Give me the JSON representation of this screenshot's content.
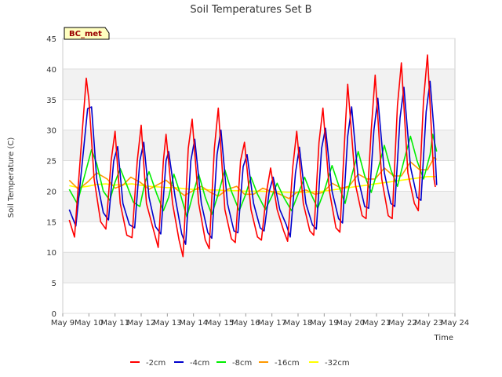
{
  "chart_data": {
    "type": "line",
    "title": "Soil Temperatures Set B",
    "xlabel": "Time",
    "ylabel": "Soil Temperature (C)",
    "annotation": "BC_met",
    "ylim": [
      0,
      45
    ],
    "yticks": [
      0,
      5,
      10,
      15,
      20,
      25,
      30,
      35,
      40,
      45
    ],
    "xlim": [
      9,
      24
    ],
    "xticks": [
      {
        "x": 9,
        "label": "May 9"
      },
      {
        "x": 10,
        "label": "May 10"
      },
      {
        "x": 11,
        "label": "May 11"
      },
      {
        "x": 12,
        "label": "May 12"
      },
      {
        "x": 13,
        "label": "May 13"
      },
      {
        "x": 14,
        "label": "May 14"
      },
      {
        "x": 15,
        "label": "May 15"
      },
      {
        "x": 16,
        "label": "May 16"
      },
      {
        "x": 17,
        "label": "May 17"
      },
      {
        "x": 18,
        "label": "May 18"
      },
      {
        "x": 19,
        "label": "May 19"
      },
      {
        "x": 20,
        "label": "May 20"
      },
      {
        "x": 21,
        "label": "May 21"
      },
      {
        "x": 22,
        "label": "May 22"
      },
      {
        "x": 23,
        "label": "May 23"
      },
      {
        "x": 24,
        "label": "May 24"
      }
    ],
    "grid": true,
    "legend_position": "bottom",
    "series": [
      {
        "name": "-2cm",
        "color": "#ff0000",
        "points": [
          [
            9.25,
            15.3
          ],
          [
            9.45,
            12.5
          ],
          [
            9.75,
            30
          ],
          [
            9.9,
            38.5
          ],
          [
            10.0,
            35
          ],
          [
            10.2,
            22
          ],
          [
            10.45,
            15
          ],
          [
            10.65,
            13.8
          ],
          [
            10.85,
            25
          ],
          [
            11.0,
            29.8
          ],
          [
            11.2,
            18
          ],
          [
            11.45,
            12.8
          ],
          [
            11.65,
            12.4
          ],
          [
            11.85,
            25
          ],
          [
            12.0,
            30.8
          ],
          [
            12.2,
            18
          ],
          [
            12.45,
            14
          ],
          [
            12.65,
            10.8
          ],
          [
            12.85,
            25
          ],
          [
            12.95,
            29.3
          ],
          [
            13.2,
            18
          ],
          [
            13.45,
            12
          ],
          [
            13.6,
            9.3
          ],
          [
            13.8,
            27
          ],
          [
            13.95,
            31.8
          ],
          [
            14.2,
            18
          ],
          [
            14.45,
            12
          ],
          [
            14.6,
            10.6
          ],
          [
            14.8,
            27
          ],
          [
            14.95,
            33.6
          ],
          [
            15.2,
            17
          ],
          [
            15.45,
            12.2
          ],
          [
            15.6,
            11.6
          ],
          [
            15.8,
            25
          ],
          [
            15.95,
            28
          ],
          [
            16.2,
            17
          ],
          [
            16.45,
            12.5
          ],
          [
            16.6,
            12
          ],
          [
            16.8,
            20
          ],
          [
            16.95,
            23.8
          ],
          [
            17.2,
            17
          ],
          [
            17.45,
            13.5
          ],
          [
            17.6,
            11.8
          ],
          [
            17.8,
            24
          ],
          [
            17.95,
            29.8
          ],
          [
            18.2,
            18
          ],
          [
            18.45,
            13.5
          ],
          [
            18.6,
            12.8
          ],
          [
            18.8,
            28
          ],
          [
            18.95,
            33.6
          ],
          [
            19.2,
            20
          ],
          [
            19.45,
            14
          ],
          [
            19.6,
            13.3
          ],
          [
            19.8,
            30
          ],
          [
            19.9,
            37.5
          ],
          [
            20.2,
            21
          ],
          [
            20.45,
            16
          ],
          [
            20.6,
            15.5
          ],
          [
            20.8,
            30
          ],
          [
            20.95,
            39
          ],
          [
            21.2,
            22
          ],
          [
            21.45,
            16
          ],
          [
            21.6,
            15.5
          ],
          [
            21.8,
            34
          ],
          [
            21.95,
            41
          ],
          [
            22.2,
            23
          ],
          [
            22.45,
            18
          ],
          [
            22.6,
            16.8
          ],
          [
            22.8,
            35
          ],
          [
            22.95,
            42.3
          ],
          [
            23.1,
            30
          ],
          [
            23.2,
            22
          ],
          [
            23.25,
            20.7
          ]
        ]
      },
      {
        "name": "-4cm",
        "color": "#0000cc",
        "points": [
          [
            9.25,
            17
          ],
          [
            9.5,
            14.3
          ],
          [
            9.8,
            27
          ],
          [
            9.95,
            33.5
          ],
          [
            10.1,
            33.8
          ],
          [
            10.3,
            22
          ],
          [
            10.55,
            16.5
          ],
          [
            10.75,
            15.3
          ],
          [
            10.95,
            25
          ],
          [
            11.1,
            27.3
          ],
          [
            11.3,
            18
          ],
          [
            11.55,
            14.5
          ],
          [
            11.75,
            14
          ],
          [
            11.95,
            25
          ],
          [
            12.1,
            28
          ],
          [
            12.3,
            19
          ],
          [
            12.55,
            14.2
          ],
          [
            12.75,
            13
          ],
          [
            12.95,
            25
          ],
          [
            13.05,
            26.5
          ],
          [
            13.3,
            19
          ],
          [
            13.55,
            13
          ],
          [
            13.7,
            11.3
          ],
          [
            13.9,
            25
          ],
          [
            14.05,
            28.5
          ],
          [
            14.3,
            18
          ],
          [
            14.55,
            13.2
          ],
          [
            14.7,
            12.3
          ],
          [
            14.9,
            26
          ],
          [
            15.05,
            30
          ],
          [
            15.3,
            18
          ],
          [
            15.55,
            13.5
          ],
          [
            15.7,
            13.2
          ],
          [
            15.9,
            24
          ],
          [
            16.05,
            26
          ],
          [
            16.3,
            18
          ],
          [
            16.55,
            14
          ],
          [
            16.7,
            13.5
          ],
          [
            16.9,
            20
          ],
          [
            17.05,
            22.3
          ],
          [
            17.3,
            17
          ],
          [
            17.55,
            14.5
          ],
          [
            17.7,
            12.5
          ],
          [
            17.9,
            23
          ],
          [
            18.05,
            27.2
          ],
          [
            18.3,
            18
          ],
          [
            18.55,
            14.5
          ],
          [
            18.7,
            13.8
          ],
          [
            18.9,
            27
          ],
          [
            19.05,
            30.3
          ],
          [
            19.3,
            20
          ],
          [
            19.55,
            15.5
          ],
          [
            19.7,
            14.8
          ],
          [
            19.9,
            29
          ],
          [
            20.05,
            33.8
          ],
          [
            20.3,
            22
          ],
          [
            20.55,
            17.5
          ],
          [
            20.7,
            17.2
          ],
          [
            20.9,
            30
          ],
          [
            21.05,
            35.2
          ],
          [
            21.3,
            23
          ],
          [
            21.55,
            18
          ],
          [
            21.7,
            17.5
          ],
          [
            21.9,
            32
          ],
          [
            22.05,
            37
          ],
          [
            22.3,
            24
          ],
          [
            22.55,
            19
          ],
          [
            22.7,
            18.5
          ],
          [
            22.9,
            33
          ],
          [
            23.05,
            38
          ],
          [
            23.2,
            30
          ],
          [
            23.3,
            21
          ]
        ]
      },
      {
        "name": "-8cm",
        "color": "#00ee00",
        "points": [
          [
            9.25,
            20.3
          ],
          [
            9.55,
            18
          ],
          [
            9.8,
            22
          ],
          [
            10.1,
            26.8
          ],
          [
            10.3,
            24.5
          ],
          [
            10.55,
            20
          ],
          [
            10.8,
            18.5
          ],
          [
            11.0,
            21.5
          ],
          [
            11.2,
            23.7
          ],
          [
            11.45,
            21
          ],
          [
            11.7,
            18.2
          ],
          [
            11.95,
            17.5
          ],
          [
            12.15,
            21.5
          ],
          [
            12.3,
            23.2
          ],
          [
            12.6,
            19.5
          ],
          [
            12.85,
            16.8
          ],
          [
            13.05,
            19
          ],
          [
            13.25,
            22.8
          ],
          [
            13.5,
            19.5
          ],
          [
            13.75,
            15.8
          ],
          [
            13.95,
            19
          ],
          [
            14.2,
            22.8
          ],
          [
            14.45,
            19
          ],
          [
            14.7,
            16.2
          ],
          [
            14.95,
            19.5
          ],
          [
            15.2,
            23.5
          ],
          [
            15.45,
            20
          ],
          [
            15.75,
            16.8
          ],
          [
            16.0,
            19.5
          ],
          [
            16.2,
            22.3
          ],
          [
            16.45,
            19.5
          ],
          [
            16.75,
            17
          ],
          [
            17.0,
            19.2
          ],
          [
            17.2,
            21.3
          ],
          [
            17.45,
            19
          ],
          [
            17.75,
            16.8
          ],
          [
            18.0,
            19.5
          ],
          [
            18.25,
            22.3
          ],
          [
            18.5,
            19.5
          ],
          [
            18.75,
            17.2
          ],
          [
            19.0,
            20
          ],
          [
            19.3,
            24.2
          ],
          [
            19.55,
            21
          ],
          [
            19.8,
            18
          ],
          [
            20.05,
            22.5
          ],
          [
            20.3,
            26.5
          ],
          [
            20.55,
            22.5
          ],
          [
            20.8,
            19.8
          ],
          [
            21.05,
            23.5
          ],
          [
            21.3,
            27.5
          ],
          [
            21.55,
            23.5
          ],
          [
            21.8,
            20.8
          ],
          [
            22.05,
            25
          ],
          [
            22.3,
            29
          ],
          [
            22.55,
            25
          ],
          [
            22.8,
            22
          ],
          [
            23.05,
            26
          ],
          [
            23.15,
            29.3
          ],
          [
            23.3,
            26.5
          ]
        ]
      },
      {
        "name": "-16cm",
        "color": "#ff9900",
        "points": [
          [
            9.25,
            21.8
          ],
          [
            9.6,
            20.3
          ],
          [
            9.95,
            21.5
          ],
          [
            10.3,
            23
          ],
          [
            10.7,
            22
          ],
          [
            11.0,
            20.5
          ],
          [
            11.3,
            21
          ],
          [
            11.6,
            22.3
          ],
          [
            11.95,
            21.5
          ],
          [
            12.3,
            20.3
          ],
          [
            12.6,
            21
          ],
          [
            12.95,
            21.8
          ],
          [
            13.3,
            20.5
          ],
          [
            13.65,
            19.3
          ],
          [
            13.95,
            20
          ],
          [
            14.3,
            20.8
          ],
          [
            14.65,
            19.8
          ],
          [
            14.95,
            19.2
          ],
          [
            15.3,
            20.3
          ],
          [
            15.65,
            20.8
          ],
          [
            15.95,
            19.5
          ],
          [
            16.3,
            19.5
          ],
          [
            16.65,
            20.5
          ],
          [
            16.95,
            20
          ],
          [
            17.3,
            19.5
          ],
          [
            17.65,
            18.8
          ],
          [
            17.95,
            19.8
          ],
          [
            18.3,
            20.2
          ],
          [
            18.65,
            19.5
          ],
          [
            18.95,
            19.8
          ],
          [
            19.3,
            21.3
          ],
          [
            19.65,
            20.5
          ],
          [
            19.95,
            20.8
          ],
          [
            20.3,
            22.8
          ],
          [
            20.65,
            22
          ],
          [
            20.95,
            22
          ],
          [
            21.3,
            23.8
          ],
          [
            21.65,
            22.5
          ],
          [
            21.95,
            22.5
          ],
          [
            22.3,
            24.8
          ],
          [
            22.65,
            23.5
          ],
          [
            22.95,
            23.5
          ],
          [
            23.2,
            25.5
          ],
          [
            23.3,
            25.2
          ]
        ]
      },
      {
        "name": "-32cm",
        "color": "#ffff00",
        "points": [
          [
            9.25,
            20.9
          ],
          [
            9.6,
            20.6
          ],
          [
            9.95,
            20.8
          ],
          [
            10.3,
            21.1
          ],
          [
            10.65,
            21.2
          ],
          [
            10.95,
            21
          ],
          [
            11.3,
            21.1
          ],
          [
            11.65,
            21.2
          ],
          [
            11.95,
            21
          ],
          [
            12.3,
            20.8
          ],
          [
            12.65,
            20.7
          ],
          [
            12.95,
            20.6
          ],
          [
            13.3,
            20.6
          ],
          [
            13.65,
            20.4
          ],
          [
            13.95,
            20.3
          ],
          [
            14.3,
            20.3
          ],
          [
            14.65,
            20.2
          ],
          [
            14.95,
            20.2
          ],
          [
            15.3,
            20.1
          ],
          [
            15.65,
            20.1
          ],
          [
            15.95,
            20
          ],
          [
            16.3,
            20
          ],
          [
            16.65,
            20
          ],
          [
            16.95,
            19.9
          ],
          [
            17.3,
            19.9
          ],
          [
            17.65,
            19.8
          ],
          [
            17.95,
            19.8
          ],
          [
            18.3,
            19.8
          ],
          [
            18.65,
            19.9
          ],
          [
            18.95,
            20
          ],
          [
            19.3,
            20.2
          ],
          [
            19.65,
            20.4
          ],
          [
            19.95,
            20.6
          ],
          [
            20.3,
            20.8
          ],
          [
            20.65,
            21
          ],
          [
            20.95,
            21.2
          ],
          [
            21.3,
            21.4
          ],
          [
            21.65,
            21.6
          ],
          [
            21.95,
            21.8
          ],
          [
            22.3,
            22
          ],
          [
            22.65,
            22.2
          ],
          [
            22.95,
            22.4
          ],
          [
            23.3,
            22.4
          ]
        ]
      }
    ]
  }
}
